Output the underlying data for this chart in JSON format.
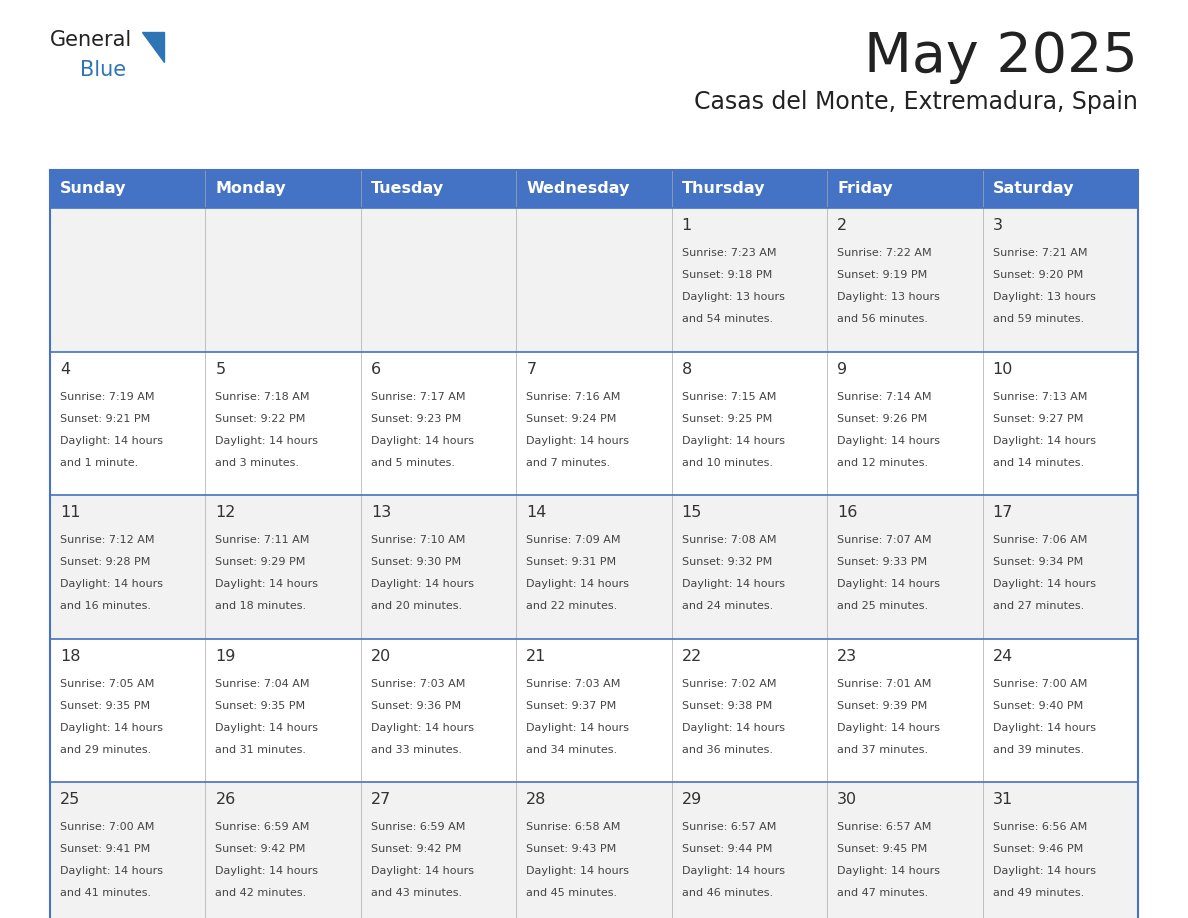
{
  "title": "May 2025",
  "subtitle": "Casas del Monte, Extremadura, Spain",
  "header_color": "#4472C4",
  "header_text_color": "#FFFFFF",
  "header_days": [
    "Sunday",
    "Monday",
    "Tuesday",
    "Wednesday",
    "Thursday",
    "Friday",
    "Saturday"
  ],
  "alt_row_color": "#F2F2F2",
  "white_color": "#FFFFFF",
  "border_color": "#4472C4",
  "cell_border_color": "#4472C4",
  "text_color": "#444444",
  "num_color": "#333333",
  "bg_color": "#FFFFFF",
  "logo_general_color": "#222222",
  "logo_blue_color": "#2E75B6",
  "logo_triangle_color": "#2E75B6",
  "weeks": [
    [
      {
        "day": "",
        "sunrise": "",
        "sunset": "",
        "daylight": ""
      },
      {
        "day": "",
        "sunrise": "",
        "sunset": "",
        "daylight": ""
      },
      {
        "day": "",
        "sunrise": "",
        "sunset": "",
        "daylight": ""
      },
      {
        "day": "",
        "sunrise": "",
        "sunset": "",
        "daylight": ""
      },
      {
        "day": "1",
        "sunrise": "Sunrise: 7:23 AM",
        "sunset": "Sunset: 9:18 PM",
        "daylight": "Daylight: 13 hours\nand 54 minutes."
      },
      {
        "day": "2",
        "sunrise": "Sunrise: 7:22 AM",
        "sunset": "Sunset: 9:19 PM",
        "daylight": "Daylight: 13 hours\nand 56 minutes."
      },
      {
        "day": "3",
        "sunrise": "Sunrise: 7:21 AM",
        "sunset": "Sunset: 9:20 PM",
        "daylight": "Daylight: 13 hours\nand 59 minutes."
      }
    ],
    [
      {
        "day": "4",
        "sunrise": "Sunrise: 7:19 AM",
        "sunset": "Sunset: 9:21 PM",
        "daylight": "Daylight: 14 hours\nand 1 minute."
      },
      {
        "day": "5",
        "sunrise": "Sunrise: 7:18 AM",
        "sunset": "Sunset: 9:22 PM",
        "daylight": "Daylight: 14 hours\nand 3 minutes."
      },
      {
        "day": "6",
        "sunrise": "Sunrise: 7:17 AM",
        "sunset": "Sunset: 9:23 PM",
        "daylight": "Daylight: 14 hours\nand 5 minutes."
      },
      {
        "day": "7",
        "sunrise": "Sunrise: 7:16 AM",
        "sunset": "Sunset: 9:24 PM",
        "daylight": "Daylight: 14 hours\nand 7 minutes."
      },
      {
        "day": "8",
        "sunrise": "Sunrise: 7:15 AM",
        "sunset": "Sunset: 9:25 PM",
        "daylight": "Daylight: 14 hours\nand 10 minutes."
      },
      {
        "day": "9",
        "sunrise": "Sunrise: 7:14 AM",
        "sunset": "Sunset: 9:26 PM",
        "daylight": "Daylight: 14 hours\nand 12 minutes."
      },
      {
        "day": "10",
        "sunrise": "Sunrise: 7:13 AM",
        "sunset": "Sunset: 9:27 PM",
        "daylight": "Daylight: 14 hours\nand 14 minutes."
      }
    ],
    [
      {
        "day": "11",
        "sunrise": "Sunrise: 7:12 AM",
        "sunset": "Sunset: 9:28 PM",
        "daylight": "Daylight: 14 hours\nand 16 minutes."
      },
      {
        "day": "12",
        "sunrise": "Sunrise: 7:11 AM",
        "sunset": "Sunset: 9:29 PM",
        "daylight": "Daylight: 14 hours\nand 18 minutes."
      },
      {
        "day": "13",
        "sunrise": "Sunrise: 7:10 AM",
        "sunset": "Sunset: 9:30 PM",
        "daylight": "Daylight: 14 hours\nand 20 minutes."
      },
      {
        "day": "14",
        "sunrise": "Sunrise: 7:09 AM",
        "sunset": "Sunset: 9:31 PM",
        "daylight": "Daylight: 14 hours\nand 22 minutes."
      },
      {
        "day": "15",
        "sunrise": "Sunrise: 7:08 AM",
        "sunset": "Sunset: 9:32 PM",
        "daylight": "Daylight: 14 hours\nand 24 minutes."
      },
      {
        "day": "16",
        "sunrise": "Sunrise: 7:07 AM",
        "sunset": "Sunset: 9:33 PM",
        "daylight": "Daylight: 14 hours\nand 25 minutes."
      },
      {
        "day": "17",
        "sunrise": "Sunrise: 7:06 AM",
        "sunset": "Sunset: 9:34 PM",
        "daylight": "Daylight: 14 hours\nand 27 minutes."
      }
    ],
    [
      {
        "day": "18",
        "sunrise": "Sunrise: 7:05 AM",
        "sunset": "Sunset: 9:35 PM",
        "daylight": "Daylight: 14 hours\nand 29 minutes."
      },
      {
        "day": "19",
        "sunrise": "Sunrise: 7:04 AM",
        "sunset": "Sunset: 9:35 PM",
        "daylight": "Daylight: 14 hours\nand 31 minutes."
      },
      {
        "day": "20",
        "sunrise": "Sunrise: 7:03 AM",
        "sunset": "Sunset: 9:36 PM",
        "daylight": "Daylight: 14 hours\nand 33 minutes."
      },
      {
        "day": "21",
        "sunrise": "Sunrise: 7:03 AM",
        "sunset": "Sunset: 9:37 PM",
        "daylight": "Daylight: 14 hours\nand 34 minutes."
      },
      {
        "day": "22",
        "sunrise": "Sunrise: 7:02 AM",
        "sunset": "Sunset: 9:38 PM",
        "daylight": "Daylight: 14 hours\nand 36 minutes."
      },
      {
        "day": "23",
        "sunrise": "Sunrise: 7:01 AM",
        "sunset": "Sunset: 9:39 PM",
        "daylight": "Daylight: 14 hours\nand 37 minutes."
      },
      {
        "day": "24",
        "sunrise": "Sunrise: 7:00 AM",
        "sunset": "Sunset: 9:40 PM",
        "daylight": "Daylight: 14 hours\nand 39 minutes."
      }
    ],
    [
      {
        "day": "25",
        "sunrise": "Sunrise: 7:00 AM",
        "sunset": "Sunset: 9:41 PM",
        "daylight": "Daylight: 14 hours\nand 41 minutes."
      },
      {
        "day": "26",
        "sunrise": "Sunrise: 6:59 AM",
        "sunset": "Sunset: 9:42 PM",
        "daylight": "Daylight: 14 hours\nand 42 minutes."
      },
      {
        "day": "27",
        "sunrise": "Sunrise: 6:59 AM",
        "sunset": "Sunset: 9:42 PM",
        "daylight": "Daylight: 14 hours\nand 43 minutes."
      },
      {
        "day": "28",
        "sunrise": "Sunrise: 6:58 AM",
        "sunset": "Sunset: 9:43 PM",
        "daylight": "Daylight: 14 hours\nand 45 minutes."
      },
      {
        "day": "29",
        "sunrise": "Sunrise: 6:57 AM",
        "sunset": "Sunset: 9:44 PM",
        "daylight": "Daylight: 14 hours\nand 46 minutes."
      },
      {
        "day": "30",
        "sunrise": "Sunrise: 6:57 AM",
        "sunset": "Sunset: 9:45 PM",
        "daylight": "Daylight: 14 hours\nand 47 minutes."
      },
      {
        "day": "31",
        "sunrise": "Sunrise: 6:56 AM",
        "sunset": "Sunset: 9:46 PM",
        "daylight": "Daylight: 14 hours\nand 49 minutes."
      }
    ]
  ]
}
